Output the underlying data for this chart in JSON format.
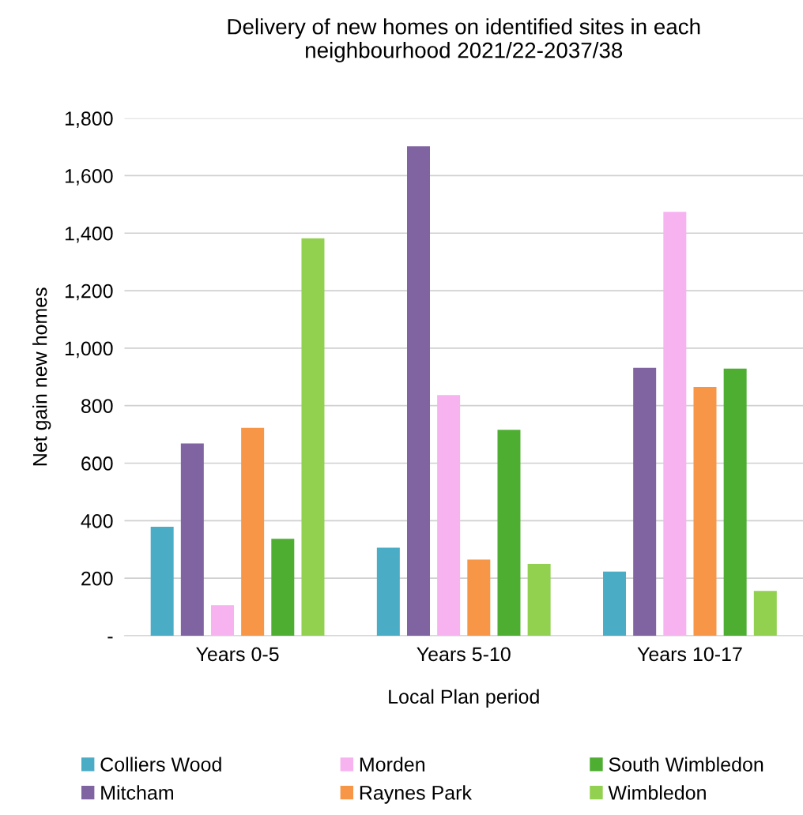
{
  "chart_data": {
    "type": "bar",
    "title": "Delivery of new homes on identified sites in each\nneighbourhood 2021/22-2037/38",
    "xlabel": "Local Plan period",
    "ylabel": "Net gain new homes",
    "categories": [
      "Years 0-5",
      "Years 5-10",
      "Years 10-17"
    ],
    "series": [
      {
        "name": "Colliers Wood",
        "color": "#4bacc6",
        "values": [
          379,
          306,
          223
        ]
      },
      {
        "name": "Mitcham",
        "color": "#8064a2",
        "values": [
          669,
          1702,
          932
        ]
      },
      {
        "name": "Morden",
        "color": "#f7b2f0",
        "values": [
          106,
          837,
          1474
        ]
      },
      {
        "name": "Raynes Park",
        "color": "#f79646",
        "values": [
          723,
          265,
          865
        ]
      },
      {
        "name": "South Wimbledon",
        "color": "#4eae32",
        "values": [
          337,
          716,
          929
        ]
      },
      {
        "name": "Wimbledon",
        "color": "#92d050",
        "values": [
          1382,
          250,
          156
        ]
      }
    ],
    "ylim": [
      0,
      1800
    ],
    "yticks": [
      {
        "value": 0,
        "label": "-"
      },
      {
        "value": 200,
        "label": "200"
      },
      {
        "value": 400,
        "label": "400"
      },
      {
        "value": 600,
        "label": "600"
      },
      {
        "value": 800,
        "label": "800"
      },
      {
        "value": 1000,
        "label": "1,000"
      },
      {
        "value": 1200,
        "label": "1,200"
      },
      {
        "value": 1400,
        "label": "1,400"
      },
      {
        "value": 1600,
        "label": "1,600"
      },
      {
        "value": 1800,
        "label": "1,800"
      }
    ],
    "grid": "y",
    "legend": "bottom"
  }
}
